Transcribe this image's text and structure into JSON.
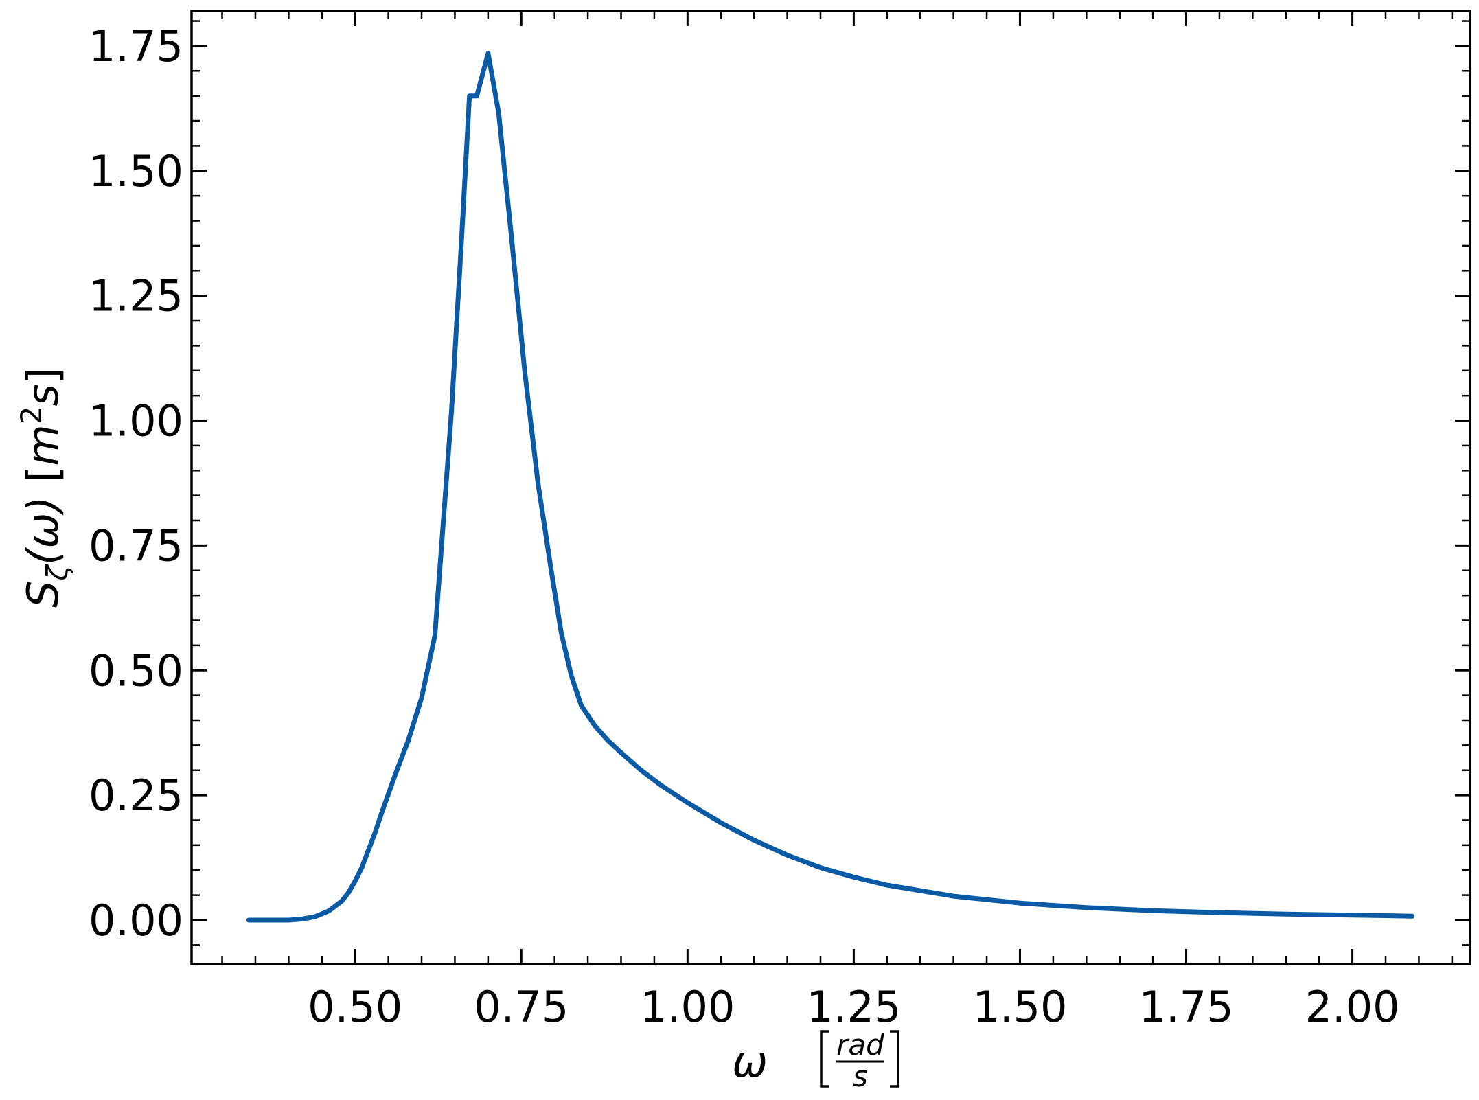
{
  "chart_data": {
    "type": "line",
    "title": "",
    "xlabel": {
      "symbol": "ω",
      "unit_numerator": "rad",
      "unit_denominator": "s"
    },
    "ylabel": {
      "symbol": "S",
      "subscript": "ζ",
      "argument": "(ω)",
      "unit": "m",
      "unit_exponent": "2",
      "unit_suffix": "s"
    },
    "xlim": [
      0.254,
      2.177
    ],
    "ylim": [
      -0.088,
      1.82
    ],
    "xticks": [
      0.5,
      0.75,
      1.0,
      1.25,
      1.5,
      1.75,
      2.0
    ],
    "xtick_labels": [
      "0.50",
      "0.75",
      "1.00",
      "1.25",
      "1.50",
      "1.75",
      "2.00"
    ],
    "yticks": [
      0.0,
      0.25,
      0.5,
      0.75,
      1.0,
      1.25,
      1.5,
      1.75
    ],
    "ytick_labels": [
      "0.00",
      "0.25",
      "0.50",
      "0.75",
      "1.00",
      "1.25",
      "1.50",
      "1.75"
    ],
    "x_minor_step": 0.05,
    "y_minor_step": 0.05,
    "grid": false,
    "line_color": "#0a5aa5",
    "series": [
      {
        "x": [
          0.34,
          0.36,
          0.38,
          0.4,
          0.42,
          0.44,
          0.46,
          0.48,
          0.49,
          0.5,
          0.51,
          0.52,
          0.53,
          0.54,
          0.56,
          0.58,
          0.6,
          0.62,
          0.63,
          0.645,
          0.66,
          0.672,
          0.683,
          0.7,
          0.716,
          0.735,
          0.755,
          0.775,
          0.795,
          0.81,
          0.825,
          0.84,
          0.86,
          0.88,
          0.9,
          0.93,
          0.96,
          1.0,
          1.05,
          1.1,
          1.15,
          1.2,
          1.25,
          1.3,
          1.4,
          1.5,
          1.6,
          1.7,
          1.8,
          1.9,
          2.0,
          2.09
        ],
        "y": [
          0.0,
          0.0,
          0.0,
          0.0,
          0.002,
          0.007,
          0.018,
          0.038,
          0.055,
          0.078,
          0.105,
          0.14,
          0.175,
          0.215,
          0.29,
          0.36,
          0.445,
          0.57,
          0.75,
          1.02,
          1.36,
          1.65,
          1.65,
          1.735,
          1.615,
          1.37,
          1.1,
          0.875,
          0.7,
          0.575,
          0.49,
          0.43,
          0.39,
          0.36,
          0.335,
          0.3,
          0.27,
          0.235,
          0.195,
          0.16,
          0.13,
          0.105,
          0.086,
          0.07,
          0.048,
          0.034,
          0.025,
          0.019,
          0.015,
          0.012,
          0.01,
          0.008
        ]
      }
    ]
  }
}
